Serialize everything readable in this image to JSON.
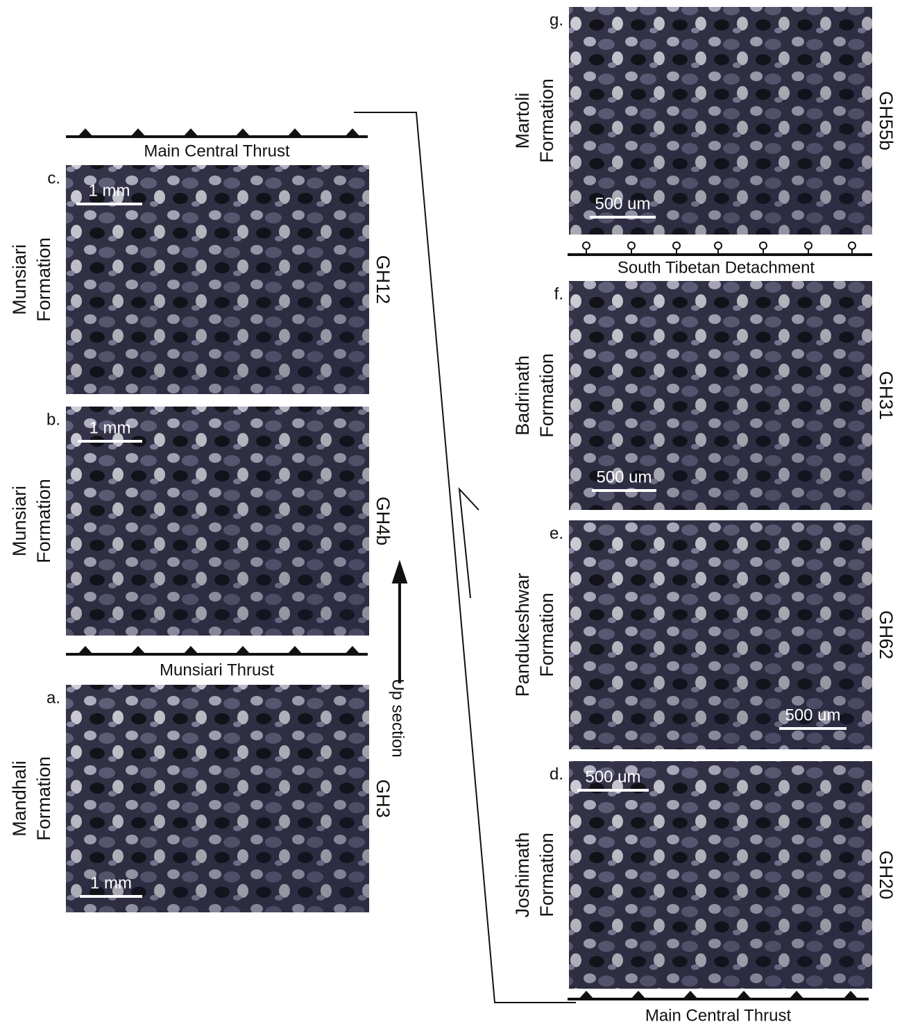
{
  "faults": {
    "top_left": "Main Central Thrust",
    "middle_left": "Munsiari Thrust",
    "top_right": "South Tibetan Detachment",
    "bottom_right": "Main Central Thrust"
  },
  "up_section": "Up section",
  "panels": [
    {
      "letter": "a.",
      "formation": [
        "Mandhali",
        "Formation"
      ],
      "sample": "GH3",
      "scale": "1 mm"
    },
    {
      "letter": "b.",
      "formation": [
        "Munsiari",
        "Formation"
      ],
      "sample": "GH4b",
      "scale": "1 mm"
    },
    {
      "letter": "c.",
      "formation": [
        "Munsiari",
        "Formation"
      ],
      "sample": "GH12",
      "scale": "1 mm"
    },
    {
      "letter": "d.",
      "formation": [
        "Joshimath",
        "Formation"
      ],
      "sample": "GH20",
      "scale": "500 um"
    },
    {
      "letter": "e.",
      "formation": [
        "Pandukeshwar",
        "Formation"
      ],
      "sample": "GH62",
      "scale": "500 um"
    },
    {
      "letter": "f.",
      "formation": [
        "Badrinath",
        "Formation"
      ],
      "sample": "GH31",
      "scale": "500 um"
    },
    {
      "letter": "g.",
      "formation": [
        "Martoli",
        "Formation"
      ],
      "sample": "GH55b",
      "scale": "500 um"
    }
  ]
}
